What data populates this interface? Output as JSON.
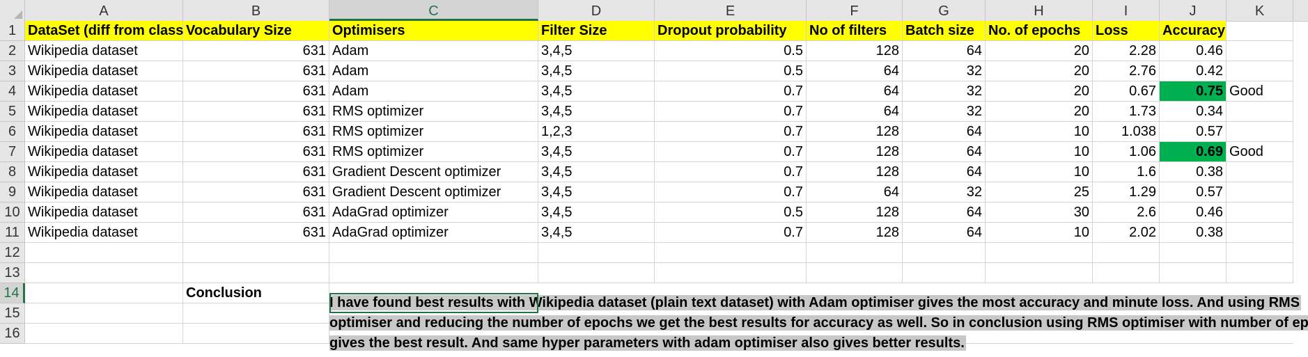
{
  "columns": [
    "A",
    "B",
    "C",
    "D",
    "E",
    "F",
    "G",
    "H",
    "I",
    "J",
    "K"
  ],
  "selected_column": "C",
  "row_numbers": [
    "1",
    "2",
    "3",
    "4",
    "5",
    "6",
    "7",
    "8",
    "9",
    "10",
    "11",
    "12",
    "13",
    "14",
    "15",
    "16"
  ],
  "selected_row": "14",
  "header_row": [
    "DataSet (diff from class)",
    "Vocabulary Size",
    "Optimisers",
    "Filter Size",
    "Dropout probability",
    "No of filters",
    "Batch size",
    "No. of epochs",
    "Loss",
    "Accuracy",
    ""
  ],
  "data_rows": [
    [
      "Wikipedia dataset",
      "631",
      "Adam",
      "3,4,5",
      "0.5",
      "128",
      "64",
      "20",
      "2.28",
      "0.46",
      ""
    ],
    [
      "Wikipedia dataset",
      "631",
      "Adam",
      "3,4,5",
      "0.5",
      "64",
      "32",
      "20",
      "2.76",
      "0.42",
      ""
    ],
    [
      "Wikipedia dataset",
      "631",
      "Adam",
      "3,4,5",
      "0.7",
      "64",
      "32",
      "20",
      "0.67",
      "0.75",
      "Good"
    ],
    [
      "Wikipedia dataset",
      "631",
      "RMS optimizer",
      "3,4,5",
      "0.7",
      "64",
      "32",
      "20",
      "1.73",
      "0.34",
      ""
    ],
    [
      "Wikipedia dataset",
      "631",
      "RMS optimizer",
      "1,2,3",
      "0.7",
      "128",
      "64",
      "10",
      "1.038",
      "0.57",
      ""
    ],
    [
      "Wikipedia dataset",
      "631",
      "RMS optimizer",
      "3,4,5",
      "0.7",
      "128",
      "64",
      "10",
      "1.06",
      "0.69",
      "Good"
    ],
    [
      "Wikipedia dataset",
      "631",
      "Gradient Descent optimizer",
      "3,4,5",
      "0.7",
      "128",
      "64",
      "10",
      "1.6",
      "0.38",
      ""
    ],
    [
      "Wikipedia dataset",
      "631",
      "Gradient Descent optimizer",
      "3,4,5",
      "0.7",
      "64",
      "32",
      "25",
      "1.29",
      "0.57",
      ""
    ],
    [
      "Wikipedia dataset",
      "631",
      "AdaGrad optimizer",
      "3,4,5",
      "0.5",
      "128",
      "64",
      "30",
      "2.6",
      "0.46",
      ""
    ],
    [
      "Wikipedia dataset",
      "631",
      "AdaGrad optimizer",
      "3,4,5",
      "0.7",
      "128",
      "64",
      "10",
      "2.02",
      "0.38",
      ""
    ]
  ],
  "highlighted_cells": [
    "J4",
    "J7"
  ],
  "colors": {
    "header_fill": "#ffff00",
    "good_fill": "#00b050",
    "selection": "#217346",
    "text_highlight": "#c8c8c8"
  },
  "conclusion_label": "Conclusion",
  "conclusion_lines": [
    "I have found best results with Wikipedia dataset (plain text dataset) with Adam optimiser gives the most accuracy and minute loss. And using RMS",
    "optimiser and reducing the number of epochs we get the best results for accuracy as well. So in conclusion using RMS optimiser with number of epochs",
    "gives the best result. And same hyper parameters with adam optimiser also gives better results."
  ]
}
